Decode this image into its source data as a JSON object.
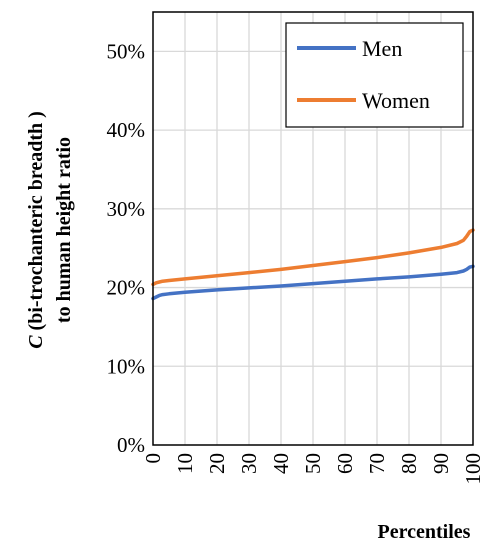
{
  "chart_data": {
    "type": "line",
    "xlabel": "Percentiles",
    "ylabel_prefix": "C",
    "ylabel_line1_rest": " (bi-trochanteric breadth )",
    "ylabel_line2": "to human height ratio",
    "xlim": [
      0,
      100
    ],
    "ylim": [
      0,
      55
    ],
    "x_ticks": [
      0,
      10,
      20,
      30,
      40,
      50,
      60,
      70,
      80,
      90,
      100
    ],
    "y_ticks": [
      0,
      10,
      20,
      30,
      40,
      50
    ],
    "y_tick_labels": [
      "0%",
      "10%",
      "20%",
      "30%",
      "40%",
      "50%"
    ],
    "grid": true,
    "legend_position": "top-right",
    "series": [
      {
        "name": "Men",
        "color": "#4472C4",
        "x": [
          0,
          1,
          2,
          3,
          5,
          10,
          20,
          30,
          40,
          50,
          60,
          70,
          80,
          90,
          95,
          97,
          98,
          99,
          100
        ],
        "values": [
          18.6,
          18.8,
          19.0,
          19.1,
          19.2,
          19.4,
          19.7,
          19.95,
          20.2,
          20.5,
          20.8,
          21.1,
          21.35,
          21.7,
          21.9,
          22.1,
          22.3,
          22.6,
          22.7
        ]
      },
      {
        "name": "Women",
        "color": "#ED7D31",
        "x": [
          0,
          1,
          2,
          3,
          5,
          10,
          20,
          30,
          40,
          50,
          60,
          70,
          80,
          90,
          95,
          97,
          98,
          99,
          100
        ],
        "values": [
          20.4,
          20.6,
          20.7,
          20.8,
          20.9,
          21.1,
          21.5,
          21.9,
          22.3,
          22.8,
          23.3,
          23.8,
          24.4,
          25.1,
          25.6,
          26.0,
          26.5,
          27.1,
          27.3
        ]
      }
    ]
  }
}
